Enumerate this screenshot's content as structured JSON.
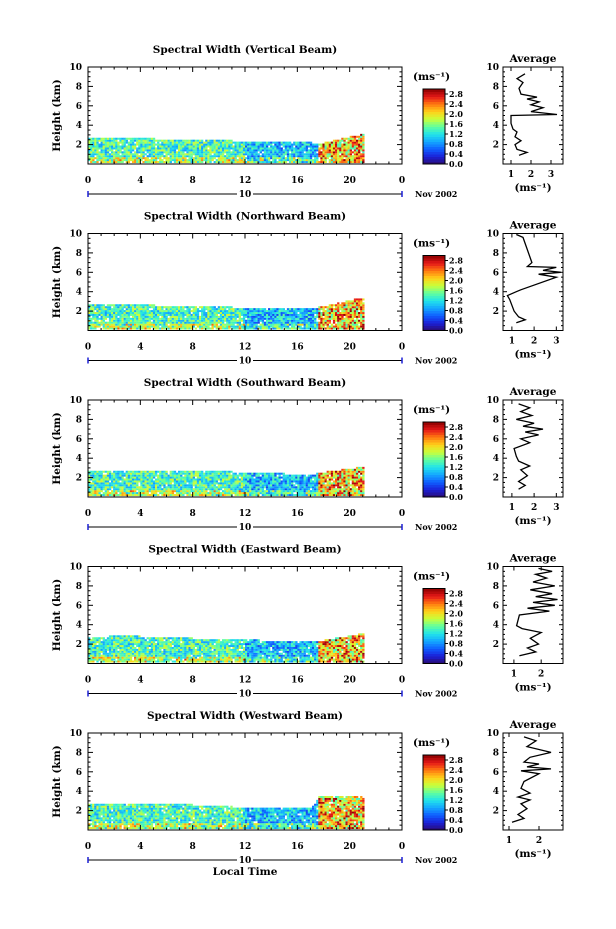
{
  "chart_data": [
    {
      "type": "heatmap",
      "title": "Spectral Width (Vertical Beam)",
      "ylabel": "Height (km)",
      "xlabel": "",
      "xlim": [
        0,
        24
      ],
      "ylim": [
        0,
        10
      ],
      "x_ticks": [
        "0",
        "4",
        "8",
        "12",
        "16",
        "20",
        "0"
      ],
      "y_ticks": [
        "2",
        "4",
        "6",
        "8",
        "10"
      ],
      "date_label": "10",
      "date_suffix": "Nov 2002",
      "colorbar": {
        "label": "(ms⁻¹)",
        "ticks": [
          "0.0",
          "0.4",
          "0.8",
          "1.2",
          "1.6",
          "2.0",
          "2.4",
          "2.8"
        ],
        "range": [
          0,
          3.0
        ]
      },
      "data_extent": {
        "x": [
          0,
          21
        ],
        "y_top_km": [
          2.6,
          2.6,
          2.5,
          2.4,
          2.3,
          2.2,
          2.2,
          2.1,
          2.0,
          3.0
        ],
        "x_top": [
          0,
          3,
          5,
          8,
          11,
          13,
          15,
          17,
          17.6,
          21
        ]
      },
      "profile": {
        "title": "Average",
        "xlabel": "(ms⁻¹)",
        "x_ticks": [
          "1",
          "2",
          "3"
        ],
        "x_tick_values": [
          1,
          2,
          3
        ],
        "xlim": [
          0.6,
          3.6
        ],
        "y_ticks": [
          "2",
          "4",
          "6",
          "8",
          "10"
        ],
        "points": [
          [
            1.4,
            0.9
          ],
          [
            1.8,
            1.2
          ],
          [
            1.3,
            1.5
          ],
          [
            1.2,
            2.0
          ],
          [
            1.5,
            2.4
          ],
          [
            1.2,
            2.8
          ],
          [
            1.3,
            3.3
          ],
          [
            1.1,
            3.6
          ],
          [
            1.0,
            4.2
          ],
          [
            1.0,
            5.0
          ],
          [
            3.3,
            5.1
          ],
          [
            2.0,
            5.4
          ],
          [
            2.6,
            5.8
          ],
          [
            2.0,
            6.1
          ],
          [
            2.4,
            6.4
          ],
          [
            1.8,
            6.7
          ],
          [
            2.3,
            6.9
          ],
          [
            1.5,
            7.2
          ],
          [
            1.4,
            7.8
          ],
          [
            1.6,
            8.4
          ],
          [
            1.3,
            8.8
          ],
          [
            1.7,
            9.3
          ]
        ]
      }
    },
    {
      "type": "heatmap",
      "title": "Spectral Width (Northward Beam)",
      "ylabel": "Height (km)",
      "xlabel": "",
      "xlim": [
        0,
        24
      ],
      "ylim": [
        0,
        10
      ],
      "x_ticks": [
        "0",
        "4",
        "8",
        "12",
        "16",
        "20",
        "0"
      ],
      "y_ticks": [
        "2",
        "4",
        "6",
        "8",
        "10"
      ],
      "date_label": "10",
      "date_suffix": "Nov 2002",
      "colorbar": {
        "label": "(ms⁻¹)",
        "ticks": [
          "0.0",
          "0.4",
          "0.8",
          "1.2",
          "1.6",
          "2.0",
          "2.4",
          "2.8"
        ],
        "range": [
          0,
          3.0
        ]
      },
      "data_extent": {
        "x_top": [
          0,
          3,
          5,
          8,
          11,
          13,
          15,
          17,
          17.6,
          21
        ],
        "y_top_km": [
          2.6,
          2.7,
          2.5,
          2.4,
          2.3,
          2.3,
          2.2,
          2.1,
          2.3,
          3.3
        ]
      },
      "profile": {
        "title": "Average",
        "xlabel": "(ms⁻¹)",
        "x_ticks": [
          "1",
          "2",
          "3"
        ],
        "x_tick_values": [
          1,
          2,
          3
        ],
        "xlim": [
          0.6,
          3.3
        ],
        "y_ticks": [
          "2",
          "4",
          "6",
          "8",
          "10"
        ],
        "points": [
          [
            1.2,
            0.8
          ],
          [
            1.6,
            1.1
          ],
          [
            1.3,
            1.4
          ],
          [
            1.1,
            2.0
          ],
          [
            1.0,
            2.6
          ],
          [
            0.9,
            3.2
          ],
          [
            0.8,
            3.6
          ],
          [
            1.2,
            4.0
          ],
          [
            1.4,
            4.2
          ],
          [
            3.0,
            5.5
          ],
          [
            2.2,
            5.8
          ],
          [
            3.2,
            6.0
          ],
          [
            2.4,
            6.2
          ],
          [
            3.0,
            6.5
          ],
          [
            1.7,
            6.6
          ],
          [
            1.9,
            7.0
          ],
          [
            1.5,
            9.6
          ],
          [
            1.2,
            9.9
          ]
        ]
      }
    },
    {
      "type": "heatmap",
      "title": "Spectral Width (Southward Beam)",
      "ylabel": "Height (km)",
      "xlabel": "",
      "xlim": [
        0,
        24
      ],
      "ylim": [
        0,
        10
      ],
      "x_ticks": [
        "0",
        "4",
        "8",
        "12",
        "16",
        "20",
        "0"
      ],
      "y_ticks": [
        "2",
        "4",
        "6",
        "8",
        "10"
      ],
      "date_label": "10",
      "date_suffix": "Nov 2002",
      "colorbar": {
        "label": "(ms⁻¹)",
        "ticks": [
          "0.0",
          "0.4",
          "0.8",
          "1.2",
          "1.6",
          "2.0",
          "2.4",
          "2.8"
        ],
        "range": [
          0,
          3.0
        ]
      },
      "data_extent": {
        "x_top": [
          0,
          3,
          5,
          8,
          11,
          13,
          15,
          17,
          17.6,
          21
        ],
        "y_top_km": [
          2.6,
          2.7,
          2.7,
          2.6,
          2.5,
          2.4,
          2.3,
          2.2,
          2.4,
          3.0
        ]
      },
      "profile": {
        "title": "Average",
        "xlabel": "(ms⁻¹)",
        "x_ticks": [
          "1",
          "2",
          "3"
        ],
        "x_tick_values": [
          1,
          2,
          3
        ],
        "xlim": [
          0.6,
          3.3
        ],
        "y_ticks": [
          "2",
          "4",
          "6",
          "8",
          "10"
        ],
        "points": [
          [
            1.3,
            0.8
          ],
          [
            1.6,
            1.2
          ],
          [
            1.3,
            1.6
          ],
          [
            1.7,
            2.2
          ],
          [
            1.4,
            2.8
          ],
          [
            1.8,
            3.2
          ],
          [
            1.3,
            3.7
          ],
          [
            1.2,
            4.2
          ],
          [
            1.1,
            5.0
          ],
          [
            1.8,
            5.6
          ],
          [
            1.4,
            6.0
          ],
          [
            2.2,
            6.4
          ],
          [
            1.6,
            6.7
          ],
          [
            2.4,
            7.0
          ],
          [
            1.5,
            7.3
          ],
          [
            2.0,
            7.6
          ],
          [
            1.2,
            8.0
          ],
          [
            1.9,
            8.4
          ],
          [
            1.4,
            8.8
          ],
          [
            1.8,
            9.2
          ],
          [
            1.3,
            9.6
          ]
        ]
      }
    },
    {
      "type": "heatmap",
      "title": "Spectral Width (Eastward Beam)",
      "ylabel": "Height (km)",
      "xlabel": "",
      "xlim": [
        0,
        24
      ],
      "ylim": [
        0,
        10
      ],
      "x_ticks": [
        "0",
        "4",
        "8",
        "12",
        "16",
        "20",
        "0"
      ],
      "y_ticks": [
        "2",
        "4",
        "6",
        "8",
        "10"
      ],
      "date_label": "10",
      "date_suffix": "Nov 2002",
      "colorbar": {
        "label": "(ms⁻¹)",
        "ticks": [
          "0.0",
          "0.4",
          "0.8",
          "1.2",
          "1.6",
          "2.0",
          "2.4",
          "2.8"
        ],
        "range": [
          0,
          3.0
        ]
      },
      "data_extent": {
        "x_top": [
          0,
          3,
          5,
          8,
          11,
          13,
          15,
          17,
          17.6,
          21
        ],
        "y_top_km": [
          2.6,
          2.8,
          2.6,
          2.5,
          2.4,
          2.3,
          2.3,
          2.2,
          2.2,
          3.0
        ]
      },
      "profile": {
        "title": "Average",
        "xlabel": "(ms⁻¹)",
        "x_ticks": [
          "1",
          "2"
        ],
        "x_tick_values": [
          1,
          2
        ],
        "xlim": [
          0.6,
          2.8
        ],
        "y_ticks": [
          "2",
          "4",
          "6",
          "8",
          "10"
        ],
        "points": [
          [
            1.2,
            0.8
          ],
          [
            1.8,
            1.2
          ],
          [
            1.5,
            1.6
          ],
          [
            1.9,
            2.0
          ],
          [
            1.6,
            2.6
          ],
          [
            2.0,
            3.2
          ],
          [
            1.3,
            3.6
          ],
          [
            1.1,
            3.9
          ],
          [
            1.2,
            5.0
          ],
          [
            2.3,
            5.4
          ],
          [
            1.5,
            5.7
          ],
          [
            2.5,
            6.0
          ],
          [
            1.7,
            6.3
          ],
          [
            2.6,
            6.6
          ],
          [
            1.8,
            6.9
          ],
          [
            2.4,
            7.2
          ],
          [
            1.6,
            7.6
          ],
          [
            2.5,
            8.0
          ],
          [
            1.7,
            8.4
          ],
          [
            2.2,
            8.8
          ],
          [
            1.8,
            9.2
          ],
          [
            2.4,
            9.5
          ],
          [
            1.9,
            9.8
          ]
        ]
      }
    },
    {
      "type": "heatmap",
      "title": "Spectral Width (Westward Beam)",
      "ylabel": "Height (km)",
      "xlabel": "Local Time",
      "xlim": [
        0,
        24
      ],
      "ylim": [
        0,
        10
      ],
      "x_ticks": [
        "0",
        "4",
        "8",
        "12",
        "16",
        "20",
        "0"
      ],
      "y_ticks": [
        "2",
        "4",
        "6",
        "8",
        "10"
      ],
      "date_label": "10",
      "date_suffix": "Nov 2002",
      "colorbar": {
        "label": "(ms⁻¹)",
        "ticks": [
          "0.0",
          "0.4",
          "0.8",
          "1.2",
          "1.6",
          "2.0",
          "2.4",
          "2.8"
        ],
        "range": [
          0,
          3.0
        ]
      },
      "data_extent": {
        "x_top": [
          0,
          3,
          5,
          8,
          11,
          13,
          15,
          17,
          17.6,
          21
        ],
        "y_top_km": [
          2.6,
          2.7,
          2.6,
          2.5,
          2.3,
          2.3,
          2.2,
          2.2,
          3.4,
          3.4
        ]
      },
      "profile": {
        "title": "Average",
        "xlabel": "(ms⁻¹)",
        "x_ticks": [
          "1",
          "2"
        ],
        "x_tick_values": [
          1,
          2
        ],
        "xlim": [
          0.8,
          2.8
        ],
        "y_ticks": [
          "2",
          "4",
          "6",
          "8",
          "10"
        ],
        "points": [
          [
            1.1,
            0.8
          ],
          [
            1.5,
            1.2
          ],
          [
            1.3,
            1.6
          ],
          [
            1.6,
            2.2
          ],
          [
            1.4,
            2.7
          ],
          [
            1.7,
            3.1
          ],
          [
            1.3,
            3.4
          ],
          [
            1.7,
            3.8
          ],
          [
            1.4,
            4.3
          ],
          [
            1.5,
            5.0
          ],
          [
            2.0,
            5.8
          ],
          [
            1.4,
            6.1
          ],
          [
            2.4,
            6.3
          ],
          [
            1.6,
            6.5
          ],
          [
            2.0,
            6.8
          ],
          [
            1.5,
            7.0
          ],
          [
            1.7,
            7.5
          ],
          [
            2.4,
            8.0
          ],
          [
            1.6,
            8.6
          ],
          [
            1.9,
            9.2
          ],
          [
            1.5,
            9.6
          ]
        ]
      }
    }
  ],
  "colors": {
    "jet": [
      "#2a0b6b",
      "#1b1fd6",
      "#0f5dff",
      "#14a6ff",
      "#21e3ea",
      "#5fffa0",
      "#c8ff3b",
      "#ffd21a",
      "#ff7a10",
      "#e61818",
      "#8c0000"
    ]
  }
}
